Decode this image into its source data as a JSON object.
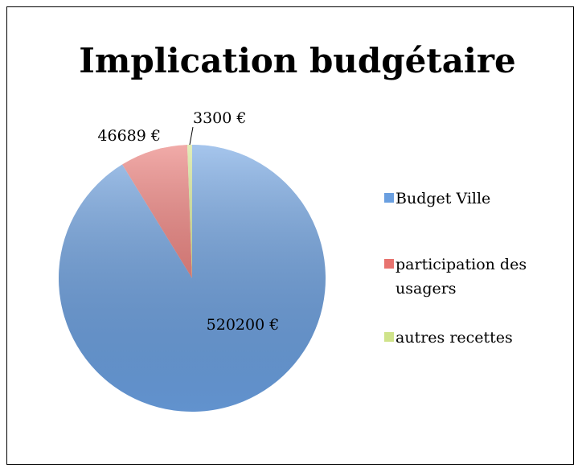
{
  "chart_data": {
    "type": "pie",
    "title": "Implication budgétaire",
    "categories": [
      "Budget Ville",
      "participation des usagers",
      "autres recettes"
    ],
    "values": [
      520200,
      46689,
      3300
    ],
    "value_labels": [
      "520200 €",
      "46689 €",
      "3300 €"
    ],
    "colors": [
      "#6a9fe0",
      "#e8736f",
      "#cfe38a"
    ],
    "legend": "right"
  }
}
